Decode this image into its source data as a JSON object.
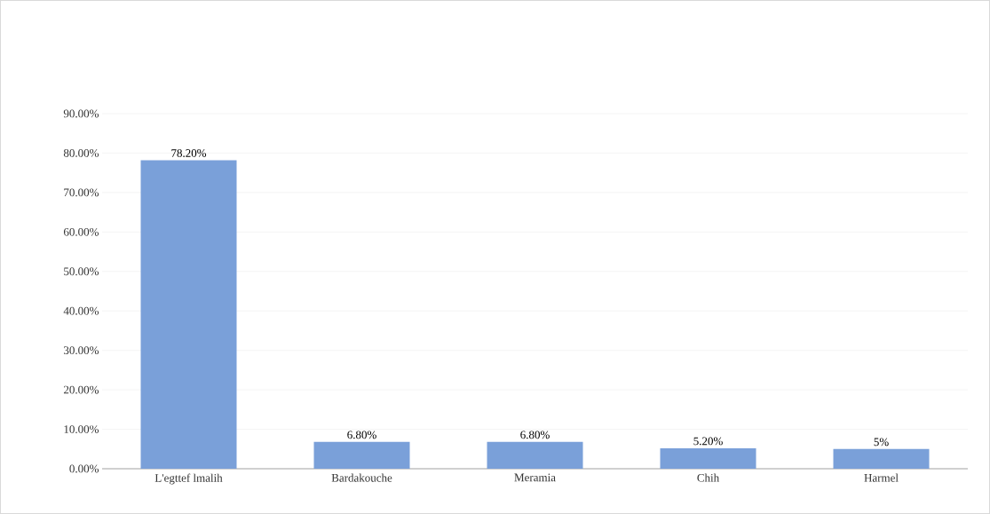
{
  "chart_data": {
    "type": "bar",
    "categories": [
      "L'egttef lmalih",
      "Bardakouche",
      "Meramia",
      "Chih",
      "Harmel"
    ],
    "values": [
      78.2,
      6.8,
      6.8,
      5.2,
      5
    ],
    "value_labels": [
      "78.20%",
      "6.80%",
      "6.80%",
      "5.20%",
      "5%"
    ],
    "color": "#7aa0d9",
    "ylim": [
      0,
      90
    ],
    "yticks": [
      {
        "value": 0,
        "label": "0.00%"
      },
      {
        "value": 10,
        "label": "10.00%"
      },
      {
        "value": 20,
        "label": "20.00%"
      },
      {
        "value": 30,
        "label": "30.00%"
      },
      {
        "value": 40,
        "label": "40.00%"
      },
      {
        "value": 50,
        "label": "50.00%"
      },
      {
        "value": 60,
        "label": "60.00%"
      },
      {
        "value": 70,
        "label": "70.00%"
      },
      {
        "value": 80,
        "label": "80.00%"
      },
      {
        "value": 90,
        "label": "90.00%"
      }
    ],
    "grid": "y"
  }
}
